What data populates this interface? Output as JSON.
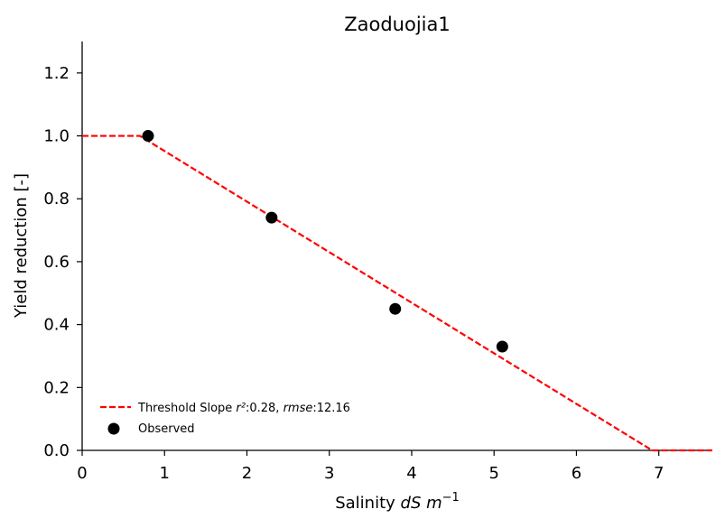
{
  "chart_data": {
    "type": "scatter",
    "title": "Zaoduojia1",
    "xlabel": {
      "prefix": "Salinity ",
      "italic": "dS m",
      "superscript": "−1"
    },
    "ylabel": "Yield reduction [-]",
    "xlim": [
      0,
      7.65
    ],
    "ylim": [
      0,
      1.3
    ],
    "x_ticks": [
      0,
      1,
      2,
      3,
      4,
      5,
      6,
      7
    ],
    "x_tick_labels": [
      "0",
      "1",
      "2",
      "3",
      "4",
      "5",
      "6",
      "7"
    ],
    "y_ticks": [
      0.0,
      0.2,
      0.4,
      0.6,
      0.8,
      1.0,
      1.2
    ],
    "y_tick_labels": [
      "0.0",
      "0.2",
      "0.4",
      "0.6",
      "0.8",
      "1.0",
      "1.2"
    ],
    "grid": false,
    "legend_position": "lower-left",
    "series": [
      {
        "name": "Threshold Slope",
        "kind": "line",
        "style": "dashed",
        "color": "#ff0000",
        "legend_label": {
          "prefix": "Threshold Slope ",
          "r2_label": "r²",
          "r2_value": ":0.28, ",
          "rmse_label": "rmse",
          "rmse_value": ":12.16"
        },
        "points": [
          {
            "x": 0,
            "y": 1.0
          },
          {
            "x": 0.7,
            "y": 1.0
          },
          {
            "x": 6.92,
            "y": 0.0
          },
          {
            "x": 7.65,
            "y": 0.0
          }
        ]
      },
      {
        "name": "Observed",
        "kind": "scatter",
        "color": "#000000",
        "points": [
          {
            "x": 0.8,
            "y": 1.0
          },
          {
            "x": 2.3,
            "y": 0.74
          },
          {
            "x": 3.8,
            "y": 0.45
          },
          {
            "x": 5.1,
            "y": 0.33
          }
        ]
      }
    ]
  }
}
